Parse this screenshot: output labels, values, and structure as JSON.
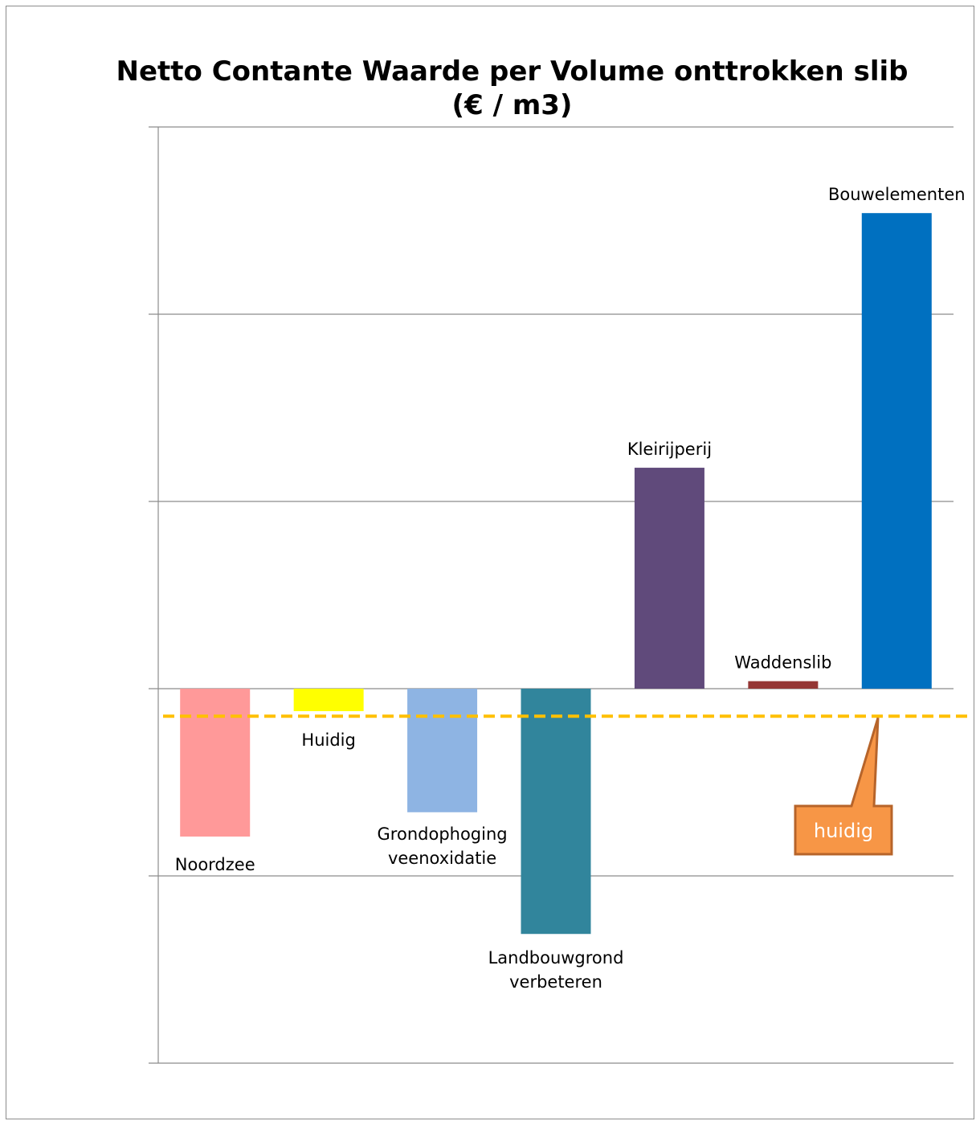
{
  "chart_data": {
    "type": "bar",
    "title_line1": "Netto Contante Waarde per Volume onttrokken slib",
    "title_line2": "(€ / m3)",
    "xlabel": "",
    "ylabel": "",
    "ylim": [
      -2,
      3
    ],
    "grid": true,
    "categories": [
      "Noordzee",
      "Huidig",
      "Grondophoging veenoxidatie",
      "Landbouwgrond verbeteren",
      "Kleirijperij",
      "Waddenslib",
      "Bouwelementen"
    ],
    "label_lines": [
      [
        "Noordzee"
      ],
      [
        "Huidig"
      ],
      [
        "Grondophoging",
        "veenoxidatie"
      ],
      [
        "Landbouwgrond",
        "verbeteren"
      ],
      [
        "Kleirijperij"
      ],
      [
        "Waddenslib"
      ],
      [
        "Bouwelementen"
      ]
    ],
    "values": [
      -0.79,
      -0.12,
      -0.66,
      -1.31,
      1.18,
      0.04,
      2.54
    ],
    "colors": [
      "#FF9999",
      "#FFFF00",
      "#8EB4E3",
      "#31859C",
      "#604A7B",
      "#953735",
      "#0070C0"
    ],
    "reference_line": {
      "value": -0.13,
      "color": "#FFC000"
    },
    "callout": {
      "text": "huidig",
      "color": "#F79646",
      "border": "#B7642A"
    }
  }
}
